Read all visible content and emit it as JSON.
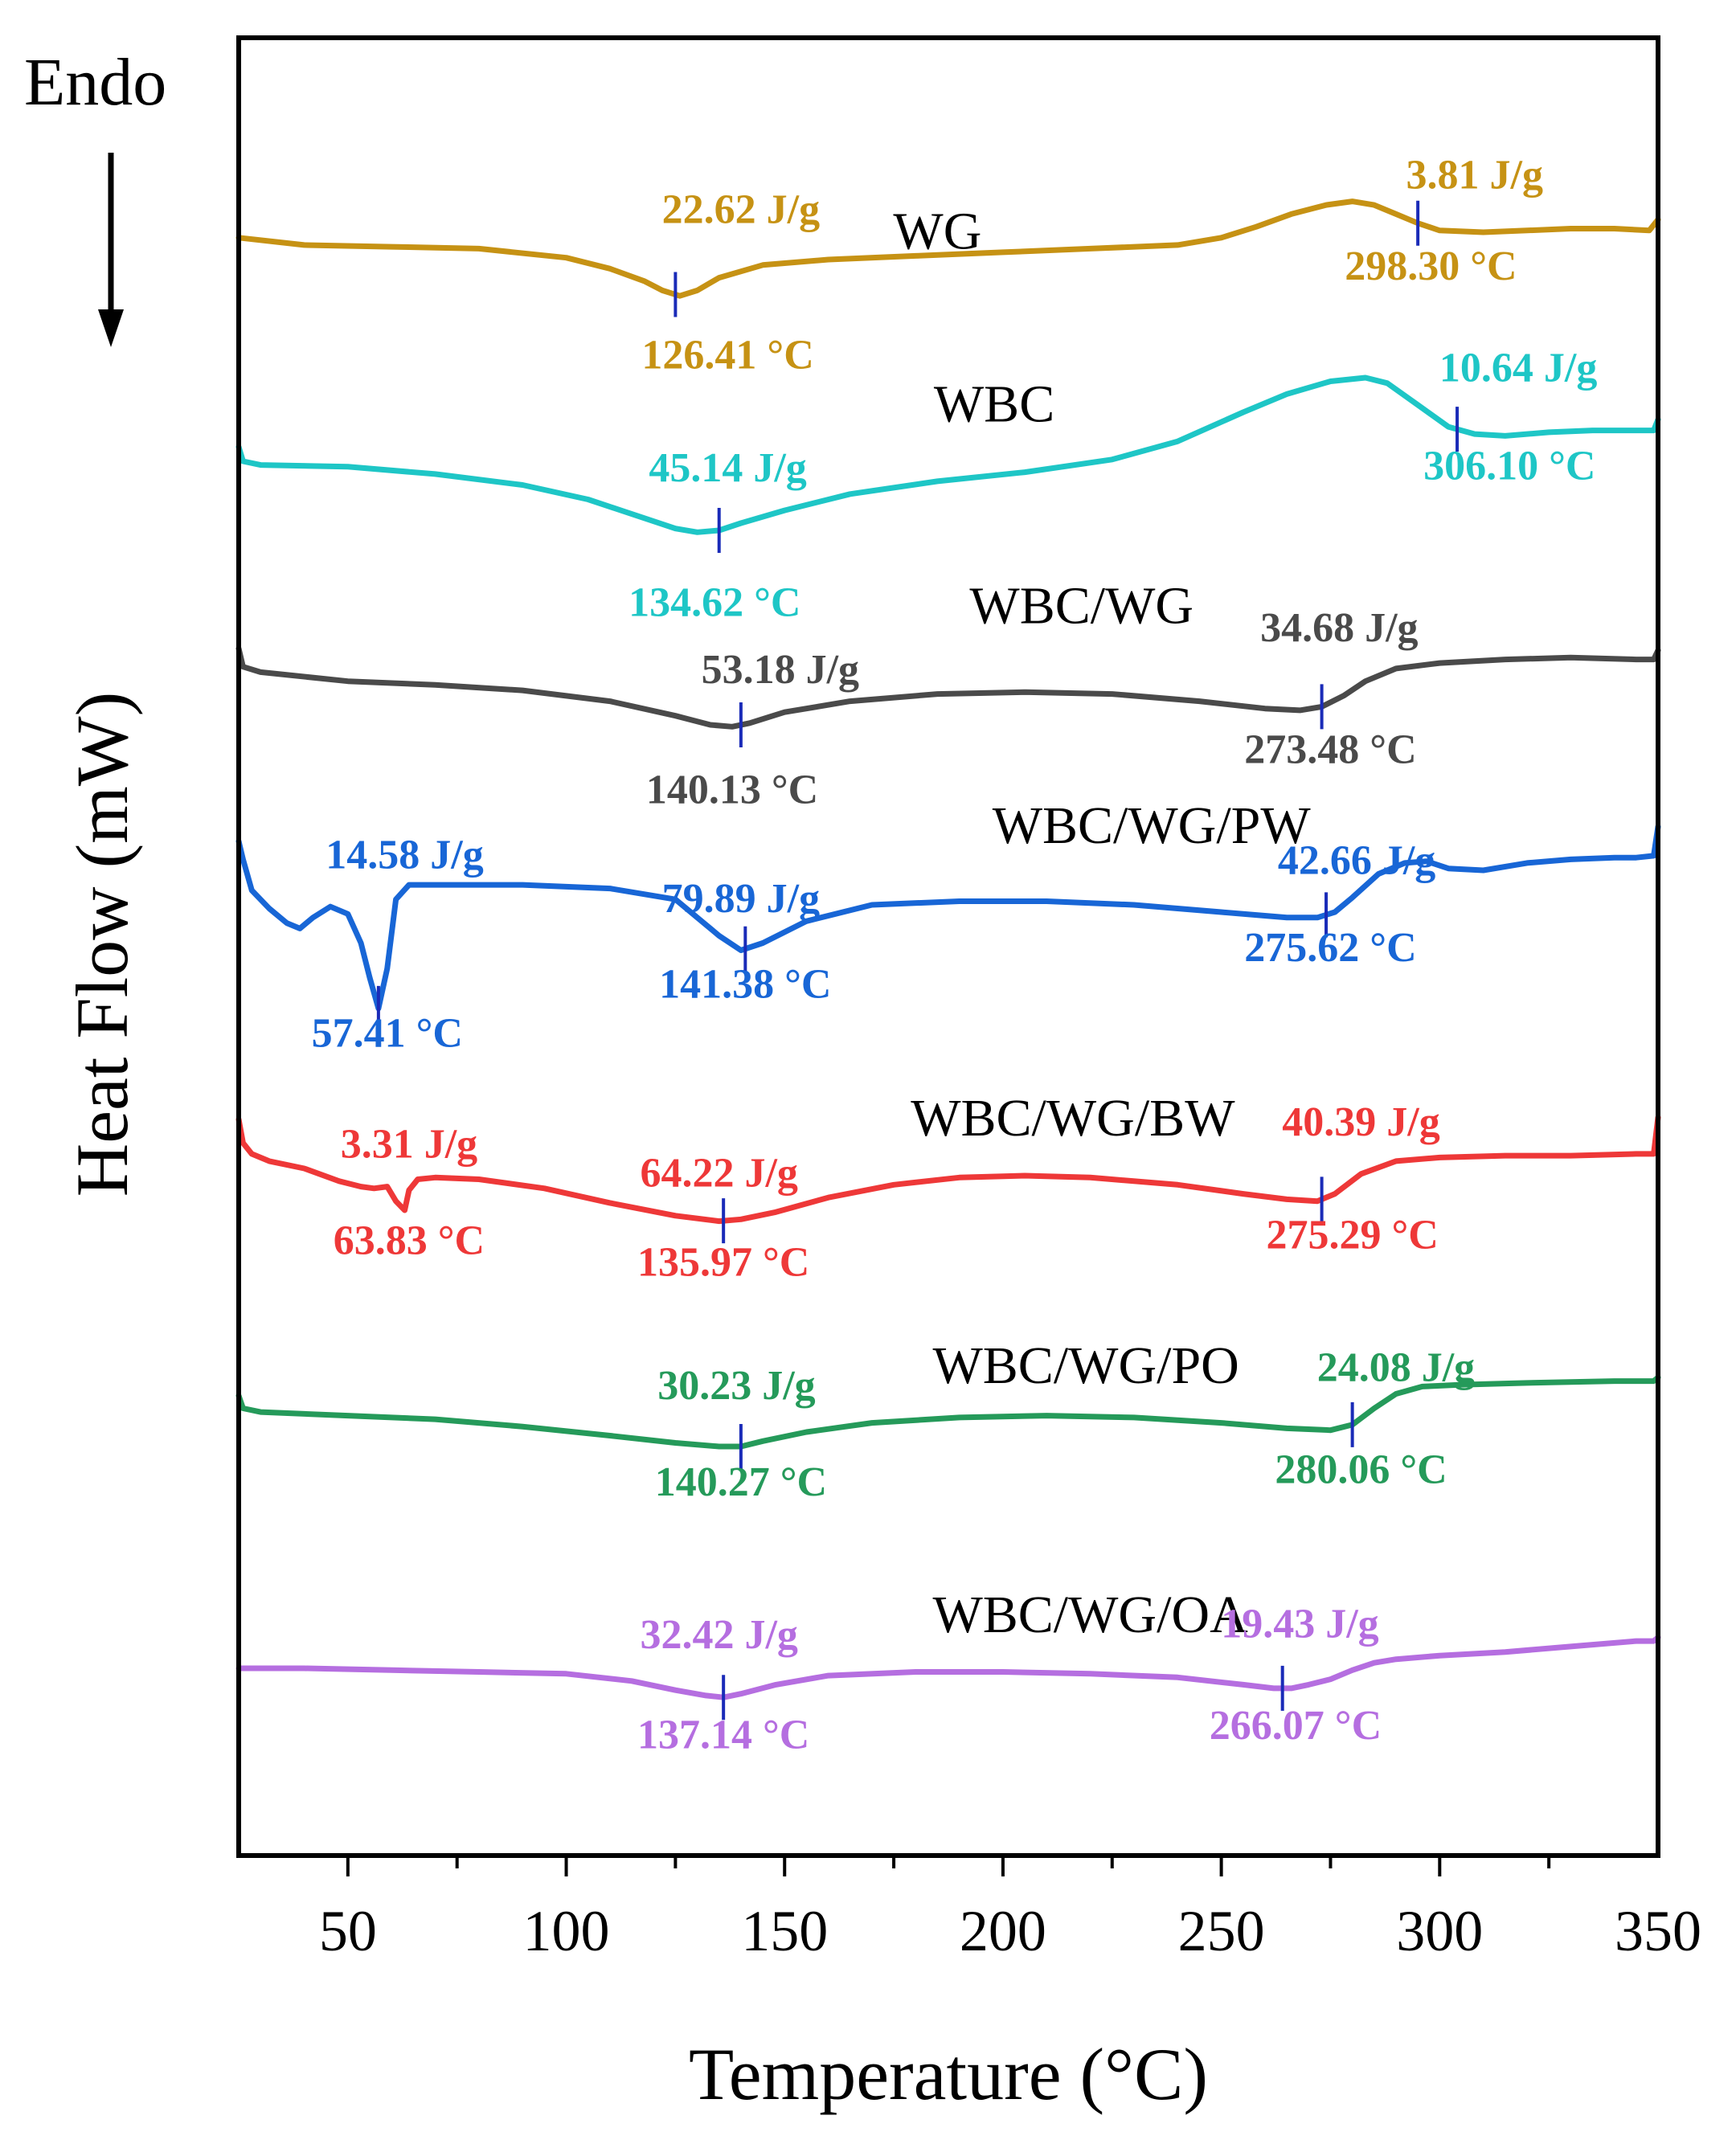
{
  "chart_data": {
    "type": "line",
    "title": "",
    "xlabel": "Temperature (°C)",
    "ylabel": "Heat Flow (mW)",
    "direction_label": "Endo",
    "xlim": [
      25,
      350
    ],
    "x_ticks": [
      50,
      100,
      150,
      200,
      250,
      300,
      350
    ],
    "x_tick_labels": [
      "50",
      "100",
      "150",
      "200",
      "250",
      "300",
      "350"
    ],
    "x_minor_step": 25,
    "y_units": "offset units, 0 = bottom of frame, 100 = top of frame (stacked curves, no numeric y axis)",
    "marker_color": "#1a2bb8",
    "series": [
      {
        "name": "WG",
        "color": "#c69214",
        "label_pos": [
          185,
          88.4
        ],
        "x": [
          25,
          40,
          60,
          80,
          100,
          110,
          118,
          122,
          126,
          130,
          135,
          145,
          160,
          180,
          200,
          220,
          240,
          250,
          258,
          266,
          274,
          280,
          285,
          290,
          295,
          300,
          310,
          320,
          330,
          340,
          348,
          350
        ],
        "y": [
          89.0,
          88.6,
          88.5,
          88.4,
          87.9,
          87.3,
          86.6,
          86.1,
          85.8,
          86.1,
          86.8,
          87.5,
          87.8,
          88.0,
          88.2,
          88.4,
          88.6,
          89.0,
          89.6,
          90.3,
          90.8,
          91.0,
          90.8,
          90.3,
          89.8,
          89.4,
          89.3,
          89.4,
          89.5,
          89.5,
          89.4,
          90.0
        ],
        "annotations": [
          {
            "text": "22.62 J/g",
            "x": 140,
            "y": 89.8
          },
          {
            "text": "126.41 °C",
            "x": 137,
            "y": 81.8
          },
          {
            "text": "3.81 J/g",
            "x": 308,
            "y": 91.7
          },
          {
            "text": "298.30 °C",
            "x": 298,
            "y": 86.7
          }
        ],
        "markers": [
          125,
          295
        ]
      },
      {
        "name": "WBC",
        "color": "#1ec6c6",
        "label_pos": [
          198,
          78.9
        ],
        "x": [
          25,
          26,
          30,
          50,
          70,
          90,
          105,
          115,
          125,
          130,
          135,
          140,
          150,
          165,
          185,
          205,
          225,
          240,
          255,
          265,
          275,
          283,
          288,
          295,
          302,
          308,
          315,
          325,
          335,
          345,
          349,
          350
        ],
        "y": [
          77.5,
          76.7,
          76.5,
          76.4,
          76.0,
          75.4,
          74.6,
          73.8,
          73.0,
          72.8,
          72.9,
          73.3,
          74.0,
          74.9,
          75.6,
          76.1,
          76.8,
          77.8,
          79.4,
          80.4,
          81.1,
          81.3,
          81.0,
          79.8,
          78.6,
          78.2,
          78.1,
          78.3,
          78.4,
          78.4,
          78.4,
          79.0
        ],
        "annotations": [
          {
            "text": "45.14 J/g",
            "x": 137,
            "y": 75.6
          },
          {
            "text": "134.62 °C",
            "x": 134,
            "y": 68.2
          },
          {
            "text": "10.64 J/g",
            "x": 318,
            "y": 81.1
          },
          {
            "text": "306.10 °C",
            "x": 316,
            "y": 75.7
          }
        ],
        "markers": [
          135,
          304
        ]
      },
      {
        "name": "WBC/WG",
        "color": "#4a4a4a",
        "label_pos": [
          218,
          67.8
        ],
        "x": [
          25,
          26,
          30,
          50,
          70,
          90,
          110,
          125,
          133,
          138,
          142,
          150,
          165,
          185,
          205,
          225,
          245,
          260,
          268,
          273,
          278,
          283,
          290,
          300,
          315,
          330,
          345,
          349,
          350
        ],
        "y": [
          66.4,
          65.4,
          65.1,
          64.6,
          64.4,
          64.1,
          63.5,
          62.7,
          62.2,
          62.1,
          62.3,
          62.9,
          63.5,
          63.9,
          64.0,
          63.9,
          63.5,
          63.1,
          63.0,
          63.2,
          63.8,
          64.6,
          65.3,
          65.6,
          65.8,
          65.9,
          65.8,
          65.8,
          66.3
        ],
        "annotations": [
          {
            "text": "53.18 J/g",
            "x": 149,
            "y": 64.5
          },
          {
            "text": "140.13 °C",
            "x": 138,
            "y": 57.9
          },
          {
            "text": "34.68 J/g",
            "x": 277,
            "y": 66.8
          },
          {
            "text": "273.48 °C",
            "x": 275,
            "y": 60.1
          }
        ],
        "markers": [
          140,
          273
        ]
      },
      {
        "name": "WBC/WG/PW",
        "color": "#1866d6",
        "label_pos": [
          234,
          55.7
        ],
        "x": [
          25,
          26,
          28,
          32,
          36,
          39,
          42,
          46,
          50,
          53,
          55,
          57,
          59,
          61,
          64,
          68,
          75,
          90,
          110,
          125,
          135,
          140,
          145,
          155,
          170,
          190,
          210,
          230,
          250,
          265,
          272,
          276,
          280,
          286,
          292,
          297,
          302,
          310,
          320,
          330,
          340,
          345,
          349,
          350
        ],
        "y": [
          55.8,
          54.8,
          53.1,
          52.1,
          51.3,
          51.0,
          51.6,
          52.2,
          51.8,
          50.2,
          48.3,
          46.6,
          48.8,
          52.6,
          53.4,
          53.4,
          53.4,
          53.4,
          53.2,
          52.6,
          50.6,
          49.8,
          50.2,
          51.4,
          52.3,
          52.5,
          52.5,
          52.3,
          51.9,
          51.6,
          51.6,
          51.9,
          52.7,
          54.0,
          54.6,
          54.7,
          54.3,
          54.2,
          54.6,
          54.8,
          54.9,
          54.9,
          55.0,
          56.6
        ],
        "annotations": [
          {
            "text": "14.58 J/g",
            "x": 63,
            "y": 54.3
          },
          {
            "text": "57.41 °C",
            "x": 59,
            "y": 44.5
          },
          {
            "text": "79.89 J/g",
            "x": 140,
            "y": 51.9
          },
          {
            "text": "141.38 °C",
            "x": 141,
            "y": 47.2
          },
          {
            "text": "42.66 J/g",
            "x": 281,
            "y": 54.0
          },
          {
            "text": "275.62 °C",
            "x": 275,
            "y": 49.2
          }
        ],
        "markers": [
          57,
          141,
          274
        ]
      },
      {
        "name": "WBC/WG/BW",
        "color": "#ee3838",
        "label_pos": [
          216,
          39.6
        ],
        "x": [
          25,
          26,
          28,
          32,
          40,
          48,
          53,
          56,
          59,
          61,
          63,
          64,
          66,
          70,
          80,
          95,
          110,
          125,
          135,
          140,
          148,
          160,
          175,
          190,
          205,
          220,
          240,
          255,
          265,
          272,
          276,
          282,
          290,
          300,
          315,
          330,
          345,
          349,
          350
        ],
        "y": [
          40.5,
          39.2,
          38.6,
          38.2,
          37.8,
          37.1,
          36.8,
          36.7,
          36.8,
          36.0,
          35.5,
          36.6,
          37.2,
          37.3,
          37.2,
          36.7,
          35.9,
          35.2,
          34.9,
          35.0,
          35.4,
          36.2,
          36.9,
          37.3,
          37.4,
          37.3,
          36.9,
          36.4,
          36.1,
          36.0,
          36.4,
          37.5,
          38.2,
          38.4,
          38.5,
          38.5,
          38.6,
          38.6,
          40.6
        ],
        "annotations": [
          {
            "text": "3.31 J/g",
            "x": 64,
            "y": 38.4
          },
          {
            "text": "63.83 °C",
            "x": 64,
            "y": 33.1
          },
          {
            "text": "64.22 J/g",
            "x": 135,
            "y": 36.8
          },
          {
            "text": "135.97 °C",
            "x": 136,
            "y": 31.9
          },
          {
            "text": "40.39 J/g",
            "x": 282,
            "y": 39.6
          },
          {
            "text": "275.29 °C",
            "x": 280,
            "y": 33.4
          }
        ],
        "markers": [
          136,
          273
        ]
      },
      {
        "name": "WBC/WG/PO",
        "color": "#259a5a",
        "label_pos": [
          219,
          26.0
        ],
        "x": [
          25,
          26,
          30,
          50,
          70,
          90,
          110,
          125,
          135,
          140,
          145,
          155,
          170,
          190,
          210,
          230,
          250,
          265,
          275,
          280,
          285,
          290,
          296,
          305,
          320,
          340,
          349,
          350
        ],
        "y": [
          25.3,
          24.6,
          24.4,
          24.2,
          24.0,
          23.6,
          23.1,
          22.7,
          22.5,
          22.5,
          22.8,
          23.3,
          23.8,
          24.1,
          24.2,
          24.1,
          23.8,
          23.5,
          23.4,
          23.7,
          24.6,
          25.4,
          25.8,
          25.9,
          26.0,
          26.1,
          26.1,
          26.3
        ],
        "annotations": [
          {
            "text": "30.23 J/g",
            "x": 139,
            "y": 25.1
          },
          {
            "text": "140.27 °C",
            "x": 140,
            "y": 19.8
          },
          {
            "text": "24.08 J/g",
            "x": 290,
            "y": 26.1
          },
          {
            "text": "280.06 °C",
            "x": 282,
            "y": 20.5
          }
        ],
        "markers": [
          140,
          280
        ]
      },
      {
        "name": "WBC/WG/OA",
        "color": "#b56ee0",
        "label_pos": [
          220,
          12.3
        ],
        "x": [
          25,
          40,
          60,
          80,
          100,
          115,
          125,
          132,
          136,
          140,
          148,
          160,
          180,
          200,
          220,
          240,
          255,
          262,
          266,
          270,
          275,
          280,
          285,
          290,
          300,
          315,
          330,
          345,
          349,
          350
        ],
        "y": [
          10.3,
          10.3,
          10.2,
          10.1,
          10.0,
          9.6,
          9.1,
          8.8,
          8.7,
          8.9,
          9.4,
          9.9,
          10.1,
          10.1,
          10.0,
          9.8,
          9.4,
          9.2,
          9.2,
          9.4,
          9.7,
          10.2,
          10.6,
          10.8,
          11.0,
          11.2,
          11.5,
          11.8,
          11.8,
          12.0
        ],
        "annotations": [
          {
            "text": "32.42 J/g",
            "x": 135,
            "y": 11.4
          },
          {
            "text": "137.14 °C",
            "x": 136,
            "y": 5.9
          },
          {
            "text": "19.43 J/g",
            "x": 268,
            "y": 12.0
          },
          {
            "text": "266.07 °C",
            "x": 267,
            "y": 6.4
          }
        ],
        "markers": [
          136,
          264
        ]
      }
    ]
  }
}
